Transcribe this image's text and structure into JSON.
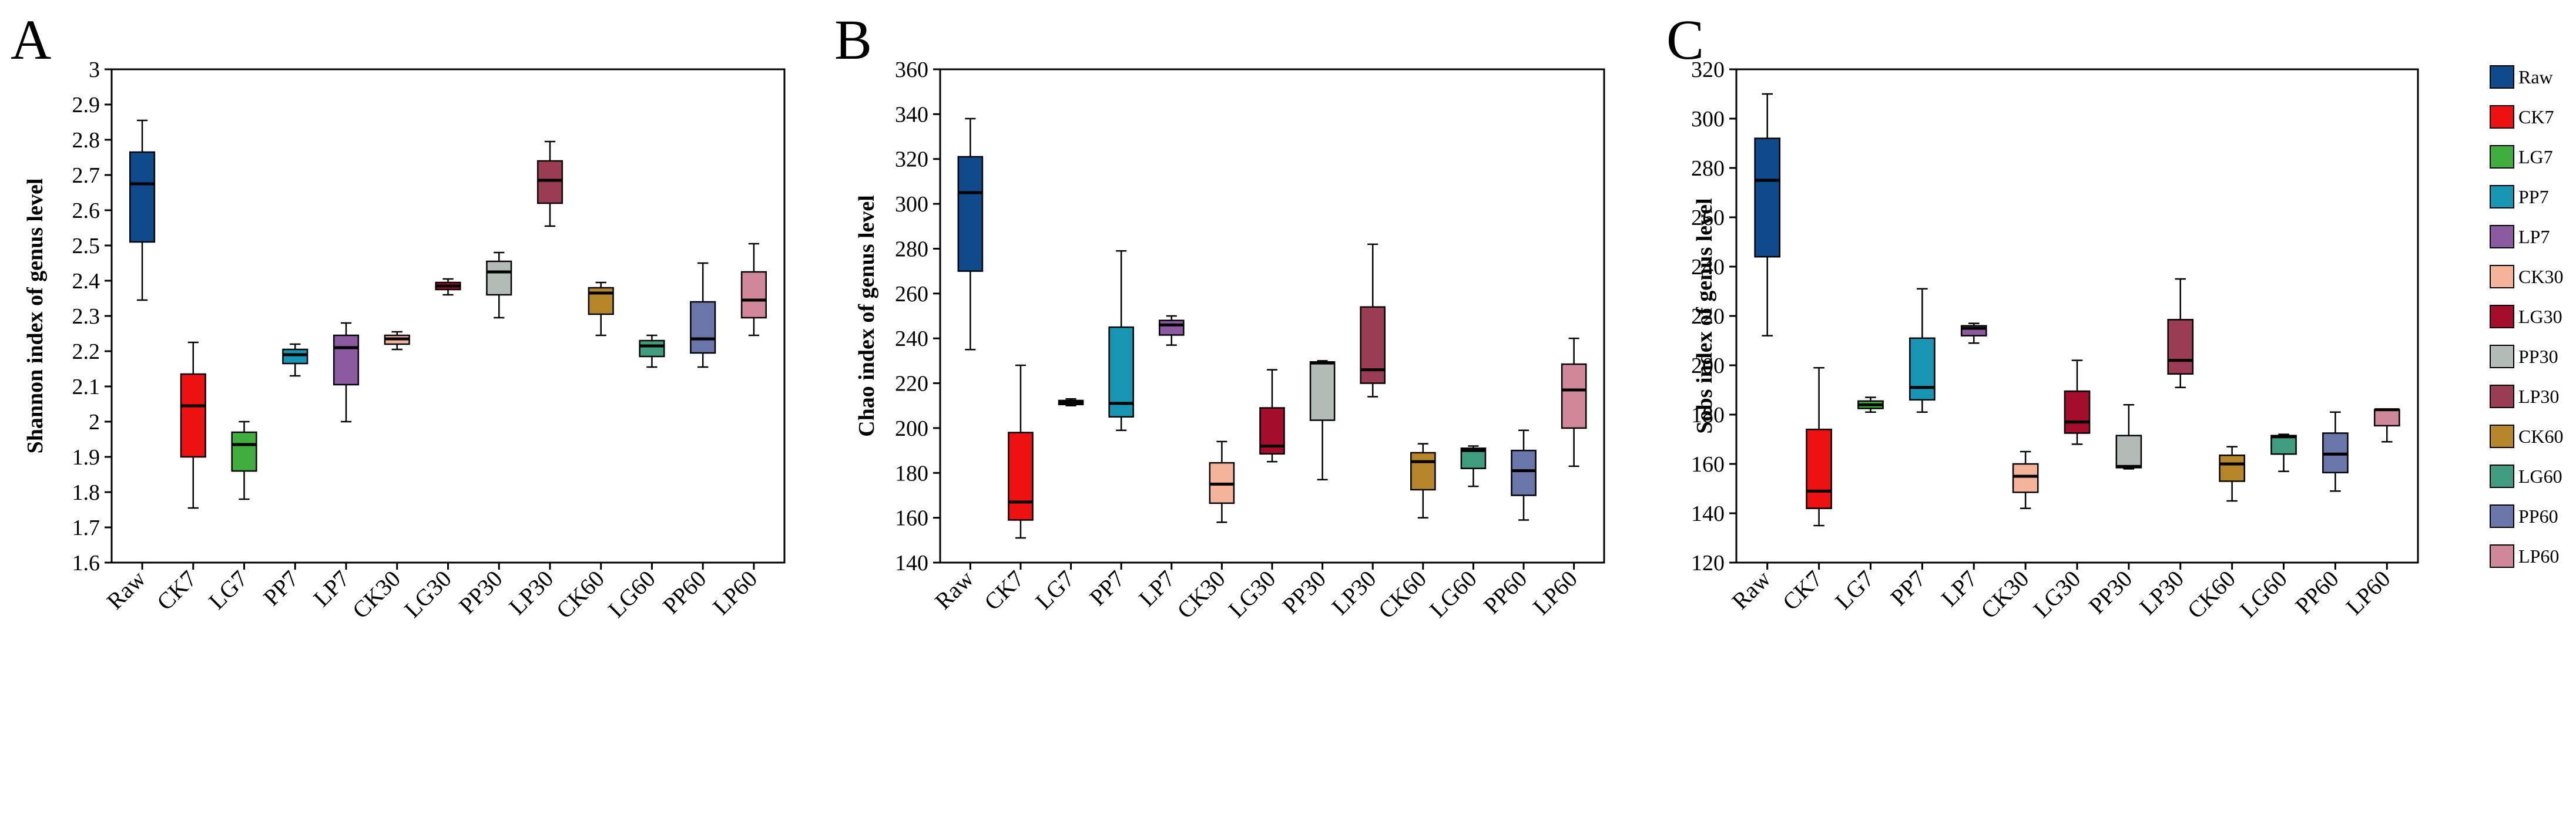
{
  "chart_data": [
    {
      "panel": "A",
      "type": "boxplot",
      "ylabel": "Shannon index of genus level",
      "ylim": [
        1.6,
        3.0
      ],
      "yticks": [
        "1.6",
        "1.7",
        "1.8",
        "1.9",
        "2",
        "2.1",
        "2.2",
        "2.3",
        "2.4",
        "2.5",
        "2.6",
        "2.7",
        "2.8",
        "2.9",
        "3"
      ],
      "categories": [
        "Raw",
        "CK7",
        "LG7",
        "PP7",
        "LP7",
        "CK30",
        "LG30",
        "PP30",
        "LP30",
        "CK60",
        "LG60",
        "PP60",
        "LP60"
      ],
      "boxes": [
        {
          "min": 2.345,
          "q1": 2.51,
          "median": 2.675,
          "q3": 2.765,
          "max": 2.855
        },
        {
          "min": 1.755,
          "q1": 1.9,
          "median": 2.045,
          "q3": 2.135,
          "max": 2.225
        },
        {
          "min": 1.78,
          "q1": 1.86,
          "median": 1.935,
          "q3": 1.97,
          "max": 2.0
        },
        {
          "min": 2.13,
          "q1": 2.165,
          "median": 2.19,
          "q3": 2.205,
          "max": 2.22
        },
        {
          "min": 2.0,
          "q1": 2.105,
          "median": 2.21,
          "q3": 2.245,
          "max": 2.28
        },
        {
          "min": 2.205,
          "q1": 2.22,
          "median": 2.235,
          "q3": 2.245,
          "max": 2.255
        },
        {
          "min": 2.36,
          "q1": 2.375,
          "median": 2.385,
          "q3": 2.395,
          "max": 2.405
        },
        {
          "min": 2.295,
          "q1": 2.36,
          "median": 2.425,
          "q3": 2.455,
          "max": 2.48
        },
        {
          "min": 2.555,
          "q1": 2.62,
          "median": 2.685,
          "q3": 2.74,
          "max": 2.795
        },
        {
          "min": 2.245,
          "q1": 2.305,
          "median": 2.365,
          "q3": 2.38,
          "max": 2.395
        },
        {
          "min": 2.155,
          "q1": 2.185,
          "median": 2.215,
          "q3": 2.23,
          "max": 2.245
        },
        {
          "min": 2.155,
          "q1": 2.195,
          "median": 2.235,
          "q3": 2.34,
          "max": 2.45
        },
        {
          "min": 2.245,
          "q1": 2.295,
          "median": 2.345,
          "q3": 2.425,
          "max": 2.505
        }
      ]
    },
    {
      "panel": "B",
      "type": "boxplot",
      "ylabel": "Chao index of genus level",
      "ylim": [
        140,
        360
      ],
      "yticks": [
        "140",
        "160",
        "180",
        "200",
        "220",
        "240",
        "260",
        "280",
        "300",
        "320",
        "340",
        "360"
      ],
      "categories": [
        "Raw",
        "CK7",
        "LG7",
        "PP7",
        "LP7",
        "CK30",
        "LG30",
        "PP30",
        "LP30",
        "CK60",
        "LG60",
        "PP60",
        "LP60"
      ],
      "boxes": [
        {
          "min": 235,
          "q1": 270,
          "median": 305,
          "q3": 321,
          "max": 338
        },
        {
          "min": 151,
          "q1": 159,
          "median": 167,
          "q3": 198,
          "max": 228
        },
        {
          "min": 210,
          "q1": 210.5,
          "median": 211.5,
          "q3": 212.3,
          "max": 213
        },
        {
          "min": 199,
          "q1": 205,
          "median": 211,
          "q3": 245,
          "max": 279
        },
        {
          "min": 237,
          "q1": 241.5,
          "median": 246,
          "q3": 248,
          "max": 250
        },
        {
          "min": 158,
          "q1": 166.5,
          "median": 175,
          "q3": 184.5,
          "max": 194
        },
        {
          "min": 185,
          "q1": 188.5,
          "median": 192,
          "q3": 209,
          "max": 226
        },
        {
          "min": 177,
          "q1": 203.5,
          "median": 229,
          "q3": 229.5,
          "max": 230
        },
        {
          "min": 214,
          "q1": 220,
          "median": 226,
          "q3": 254,
          "max": 282
        },
        {
          "min": 160,
          "q1": 172.5,
          "median": 185,
          "q3": 189,
          "max": 193
        },
        {
          "min": 174,
          "q1": 182,
          "median": 190,
          "q3": 191,
          "max": 192
        },
        {
          "min": 159,
          "q1": 170,
          "median": 181,
          "q3": 190,
          "max": 199
        },
        {
          "min": 183,
          "q1": 200,
          "median": 217,
          "q3": 228.5,
          "max": 240
        }
      ]
    },
    {
      "panel": "C",
      "type": "boxplot",
      "ylabel": "Sobs index of genus level",
      "ylim": [
        120,
        320
      ],
      "yticks": [
        "120",
        "140",
        "160",
        "180",
        "200",
        "220",
        "240",
        "260",
        "280",
        "300",
        "320"
      ],
      "categories": [
        "Raw",
        "CK7",
        "LG7",
        "PP7",
        "LP7",
        "CK30",
        "LG30",
        "PP30",
        "LP30",
        "CK60",
        "LG60",
        "PP60",
        "LP60"
      ],
      "boxes": [
        {
          "min": 212,
          "q1": 244,
          "median": 275,
          "q3": 292,
          "max": 310
        },
        {
          "min": 135,
          "q1": 142,
          "median": 149,
          "q3": 174,
          "max": 199
        },
        {
          "min": 181,
          "q1": 182.5,
          "median": 184,
          "q3": 185.5,
          "max": 187
        },
        {
          "min": 181,
          "q1": 186,
          "median": 191,
          "q3": 211,
          "max": 231
        },
        {
          "min": 209,
          "q1": 212,
          "median": 215,
          "q3": 216,
          "max": 217
        },
        {
          "min": 142,
          "q1": 148.5,
          "median": 155,
          "q3": 160,
          "max": 165
        },
        {
          "min": 168,
          "q1": 172.5,
          "median": 177,
          "q3": 189.5,
          "max": 202
        },
        {
          "min": 158,
          "q1": 158.5,
          "median": 159,
          "q3": 171.5,
          "max": 184
        },
        {
          "min": 191,
          "q1": 196.5,
          "median": 202,
          "q3": 218.5,
          "max": 235
        },
        {
          "min": 145,
          "q1": 153,
          "median": 160,
          "q3": 163.5,
          "max": 167
        },
        {
          "min": 157,
          "q1": 164,
          "median": 171,
          "q3": 171.5,
          "max": 172
        },
        {
          "min": 149,
          "q1": 156.5,
          "median": 164,
          "q3": 172.5,
          "max": 181
        },
        {
          "min": 169,
          "q1": 175.5,
          "median": 182,
          "q3": 182,
          "max": 182
        }
      ]
    }
  ],
  "legend": {
    "position": "right",
    "entries": [
      {
        "label": "Raw",
        "color": "#0e4a8c"
      },
      {
        "label": "CK7",
        "color": "#ee1111"
      },
      {
        "label": "LG7",
        "color": "#3fae3f"
      },
      {
        "label": "PP7",
        "color": "#1795b3"
      },
      {
        "label": "LP7",
        "color": "#8c5aa0"
      },
      {
        "label": "CK30",
        "color": "#f5b49a"
      },
      {
        "label": "LG30",
        "color": "#a50d2c"
      },
      {
        "label": "PP30",
        "color": "#b2bbb6"
      },
      {
        "label": "LP30",
        "color": "#9a3c52"
      },
      {
        "label": "CK60",
        "color": "#b8862a"
      },
      {
        "label": "LG60",
        "color": "#3f9c7e"
      },
      {
        "label": "PP60",
        "color": "#6a76aa"
      },
      {
        "label": "LP60",
        "color": "#cf8799"
      }
    ]
  }
}
